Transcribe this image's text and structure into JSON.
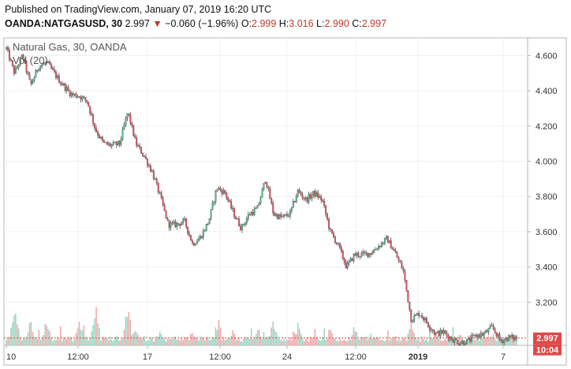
{
  "header": {
    "published": "Published on TradingView.com, January 07, 2019 16:20 UTC",
    "symbol": "OANDA:NATGASUSD, 30",
    "last": "2.997",
    "change_arrow": "▼",
    "change": "−0.060 (−1.96%)",
    "o_label": "O:",
    "o_value": "2.999",
    "h_label": "H:",
    "h_value": "3.016",
    "l_label": "L:",
    "l_value": "2.990",
    "c_label": "C:",
    "c_value": "2.997"
  },
  "legend": {
    "title": "Natural Gas, 30, OANDA",
    "volume": "Vol (20)"
  },
  "price_badge": {
    "value": "2.997",
    "countdown": "10:04",
    "color": "#e04848"
  },
  "chart_data": {
    "type": "candlestick",
    "title": "Natural Gas, 30, OANDA",
    "y_ticks": [
      "4.600",
      "4.400",
      "4.200",
      "4.000",
      "3.800",
      "3.600",
      "3.400",
      "3.200"
    ],
    "y_tick_values": [
      4.6,
      4.4,
      4.2,
      4.0,
      3.8,
      3.6,
      3.4,
      3.2
    ],
    "ylim": [
      3.0,
      4.7
    ],
    "x_ticks": [
      "10",
      "12:00",
      "17",
      "12:00",
      "24",
      "12:00",
      "2019",
      "7"
    ],
    "last_price": 2.997,
    "up_color": "#53b987",
    "down_color": "#eb4d5c",
    "path": [
      [
        0,
        4.64
      ],
      [
        2,
        4.5
      ],
      [
        4,
        4.6
      ],
      [
        6,
        4.43
      ],
      [
        8,
        4.54
      ],
      [
        10,
        4.56
      ],
      [
        13,
        4.46
      ],
      [
        16,
        4.38
      ],
      [
        18,
        4.37
      ],
      [
        20,
        4.34
      ],
      [
        22,
        4.18
      ],
      [
        24,
        4.1
      ],
      [
        26,
        4.09
      ],
      [
        28,
        4.1
      ],
      [
        30,
        4.28
      ],
      [
        32,
        4.1
      ],
      [
        34,
        4.03
      ],
      [
        36,
        3.94
      ],
      [
        38,
        3.8
      ],
      [
        40,
        3.64
      ],
      [
        42,
        3.64
      ],
      [
        44,
        3.66
      ],
      [
        46,
        3.53
      ],
      [
        48,
        3.57
      ],
      [
        50,
        3.66
      ],
      [
        52,
        3.85
      ],
      [
        54,
        3.82
      ],
      [
        56,
        3.71
      ],
      [
        58,
        3.62
      ],
      [
        60,
        3.7
      ],
      [
        62,
        3.73
      ],
      [
        64,
        3.9
      ],
      [
        66,
        3.7
      ],
      [
        68,
        3.68
      ],
      [
        70,
        3.7
      ],
      [
        72,
        3.83
      ],
      [
        74,
        3.78
      ],
      [
        76,
        3.82
      ],
      [
        78,
        3.78
      ],
      [
        80,
        3.6
      ],
      [
        82,
        3.52
      ],
      [
        84,
        3.4
      ],
      [
        86,
        3.47
      ],
      [
        88,
        3.47
      ],
      [
        90,
        3.48
      ],
      [
        92,
        3.52
      ],
      [
        94,
        3.56
      ],
      [
        96,
        3.48
      ],
      [
        98,
        3.38
      ],
      [
        100,
        3.1
      ],
      [
        102,
        3.14
      ],
      [
        104,
        3.08
      ],
      [
        106,
        3.02
      ],
      [
        108,
        3.03
      ],
      [
        110,
        2.99
      ],
      [
        112,
        2.97
      ],
      [
        114,
        2.98
      ],
      [
        116,
        3.01
      ],
      [
        118,
        3.02
      ],
      [
        120,
        3.06
      ],
      [
        122,
        2.98
      ],
      [
        124,
        3.0
      ],
      [
        126,
        2.997
      ]
    ],
    "volume": {
      "label": "Vol (20)",
      "spikes": [
        [
          2,
          0.9
        ],
        [
          6,
          0.7
        ],
        [
          10,
          0.6
        ],
        [
          18,
          0.55
        ],
        [
          22,
          1.0
        ],
        [
          30,
          1.0
        ],
        [
          32,
          0.5
        ],
        [
          38,
          0.45
        ],
        [
          46,
          0.35
        ],
        [
          52,
          0.5
        ],
        [
          56,
          0.45
        ],
        [
          62,
          0.5
        ],
        [
          66,
          0.6
        ],
        [
          72,
          0.5
        ],
        [
          80,
          0.45
        ],
        [
          86,
          0.5
        ],
        [
          90,
          0.3
        ],
        [
          100,
          0.55
        ],
        [
          106,
          0.35
        ],
        [
          112,
          0.3
        ],
        [
          120,
          0.3
        ]
      ]
    }
  }
}
